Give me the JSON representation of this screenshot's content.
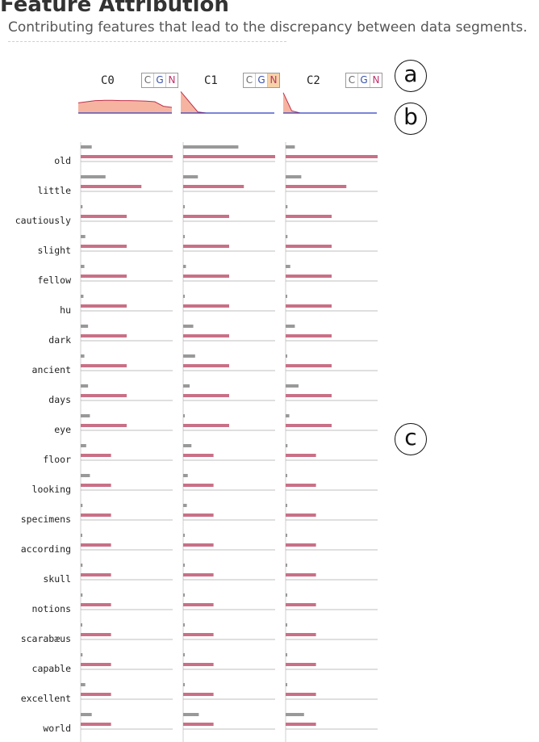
{
  "header": {
    "title": "Feature Attribution",
    "subtitle": "Contributing features that lead to the discrepancy between data segments."
  },
  "annotations": {
    "a": "a",
    "b": "b",
    "c": "c"
  },
  "colors": {
    "bar_gray": "#999999",
    "bar_pink": "#c97086",
    "baseline": "#aaaaaa",
    "area_fill": "#f6b4a0",
    "area_stroke": "#c0304a",
    "spark_line": "#2a3fbf",
    "active_toggle": "#f6d2a8"
  },
  "chart_data": {
    "type": "bar",
    "features": [
      "old",
      "little",
      "cautiously",
      "slight",
      "fellow",
      "hu",
      "dark",
      "ancient",
      "days",
      "eye",
      "floor",
      "looking",
      "specimens",
      "according",
      "skull",
      "notions",
      "scarabæus",
      "capable",
      "excellent",
      "world"
    ],
    "columns": [
      {
        "name": "C0",
        "toggle": {
          "labels": [
            "C",
            "G",
            "N"
          ],
          "active": ""
        },
        "sparkline": [
          0.45,
          0.5,
          0.55,
          0.56,
          0.56,
          0.55,
          0.55,
          0.54,
          0.53,
          0.5,
          0.3,
          0.25
        ],
        "gray": [
          0.12,
          0.27,
          0.02,
          0.05,
          0.04,
          0.03,
          0.08,
          0.04,
          0.08,
          0.1,
          0.06,
          0.1,
          0.02,
          0.01,
          0.02,
          0.02,
          0.01,
          0.02,
          0.05,
          0.12
        ],
        "pink": [
          1.0,
          0.66,
          0.5,
          0.5,
          0.5,
          0.5,
          0.5,
          0.5,
          0.5,
          0.5,
          0.33,
          0.33,
          0.33,
          0.33,
          0.33,
          0.33,
          0.33,
          0.33,
          0.33,
          0.33
        ]
      },
      {
        "name": "C1",
        "toggle": {
          "labels": [
            "C",
            "G",
            "N"
          ],
          "active": "N"
        },
        "sparkline": [
          0.95,
          0.5,
          0.05,
          0.0,
          0.0,
          0.0,
          0.0,
          0.0,
          0.0,
          0.0,
          0.0,
          0.0
        ],
        "gray": [
          0.6,
          0.16,
          0.01,
          0.01,
          0.03,
          0.01,
          0.11,
          0.13,
          0.07,
          0.01,
          0.09,
          0.05,
          0.04,
          0.01,
          0.01,
          0.01,
          0.01,
          0.01,
          0.01,
          0.17
        ],
        "pink": [
          1.0,
          0.66,
          0.5,
          0.5,
          0.5,
          0.5,
          0.5,
          0.5,
          0.5,
          0.5,
          0.33,
          0.33,
          0.33,
          0.33,
          0.33,
          0.33,
          0.33,
          0.33,
          0.33,
          0.33
        ]
      },
      {
        "name": "C2",
        "toggle": {
          "labels": [
            "C",
            "G",
            "N"
          ],
          "active": ""
        },
        "sparkline": [
          0.9,
          0.1,
          0.0,
          0.0,
          0.0,
          0.0,
          0.0,
          0.0,
          0.0,
          0.0,
          0.0,
          0.0
        ],
        "gray": [
          0.1,
          0.17,
          0.02,
          0.02,
          0.05,
          0.01,
          0.1,
          0.01,
          0.14,
          0.04,
          0.02,
          0.01,
          0.01,
          0.01,
          0.01,
          0.01,
          0.01,
          0.01,
          0.01,
          0.2
        ],
        "pink": [
          1.0,
          0.66,
          0.5,
          0.5,
          0.5,
          0.5,
          0.5,
          0.5,
          0.5,
          0.5,
          0.33,
          0.33,
          0.33,
          0.33,
          0.33,
          0.33,
          0.33,
          0.33,
          0.33,
          0.33
        ]
      }
    ]
  }
}
